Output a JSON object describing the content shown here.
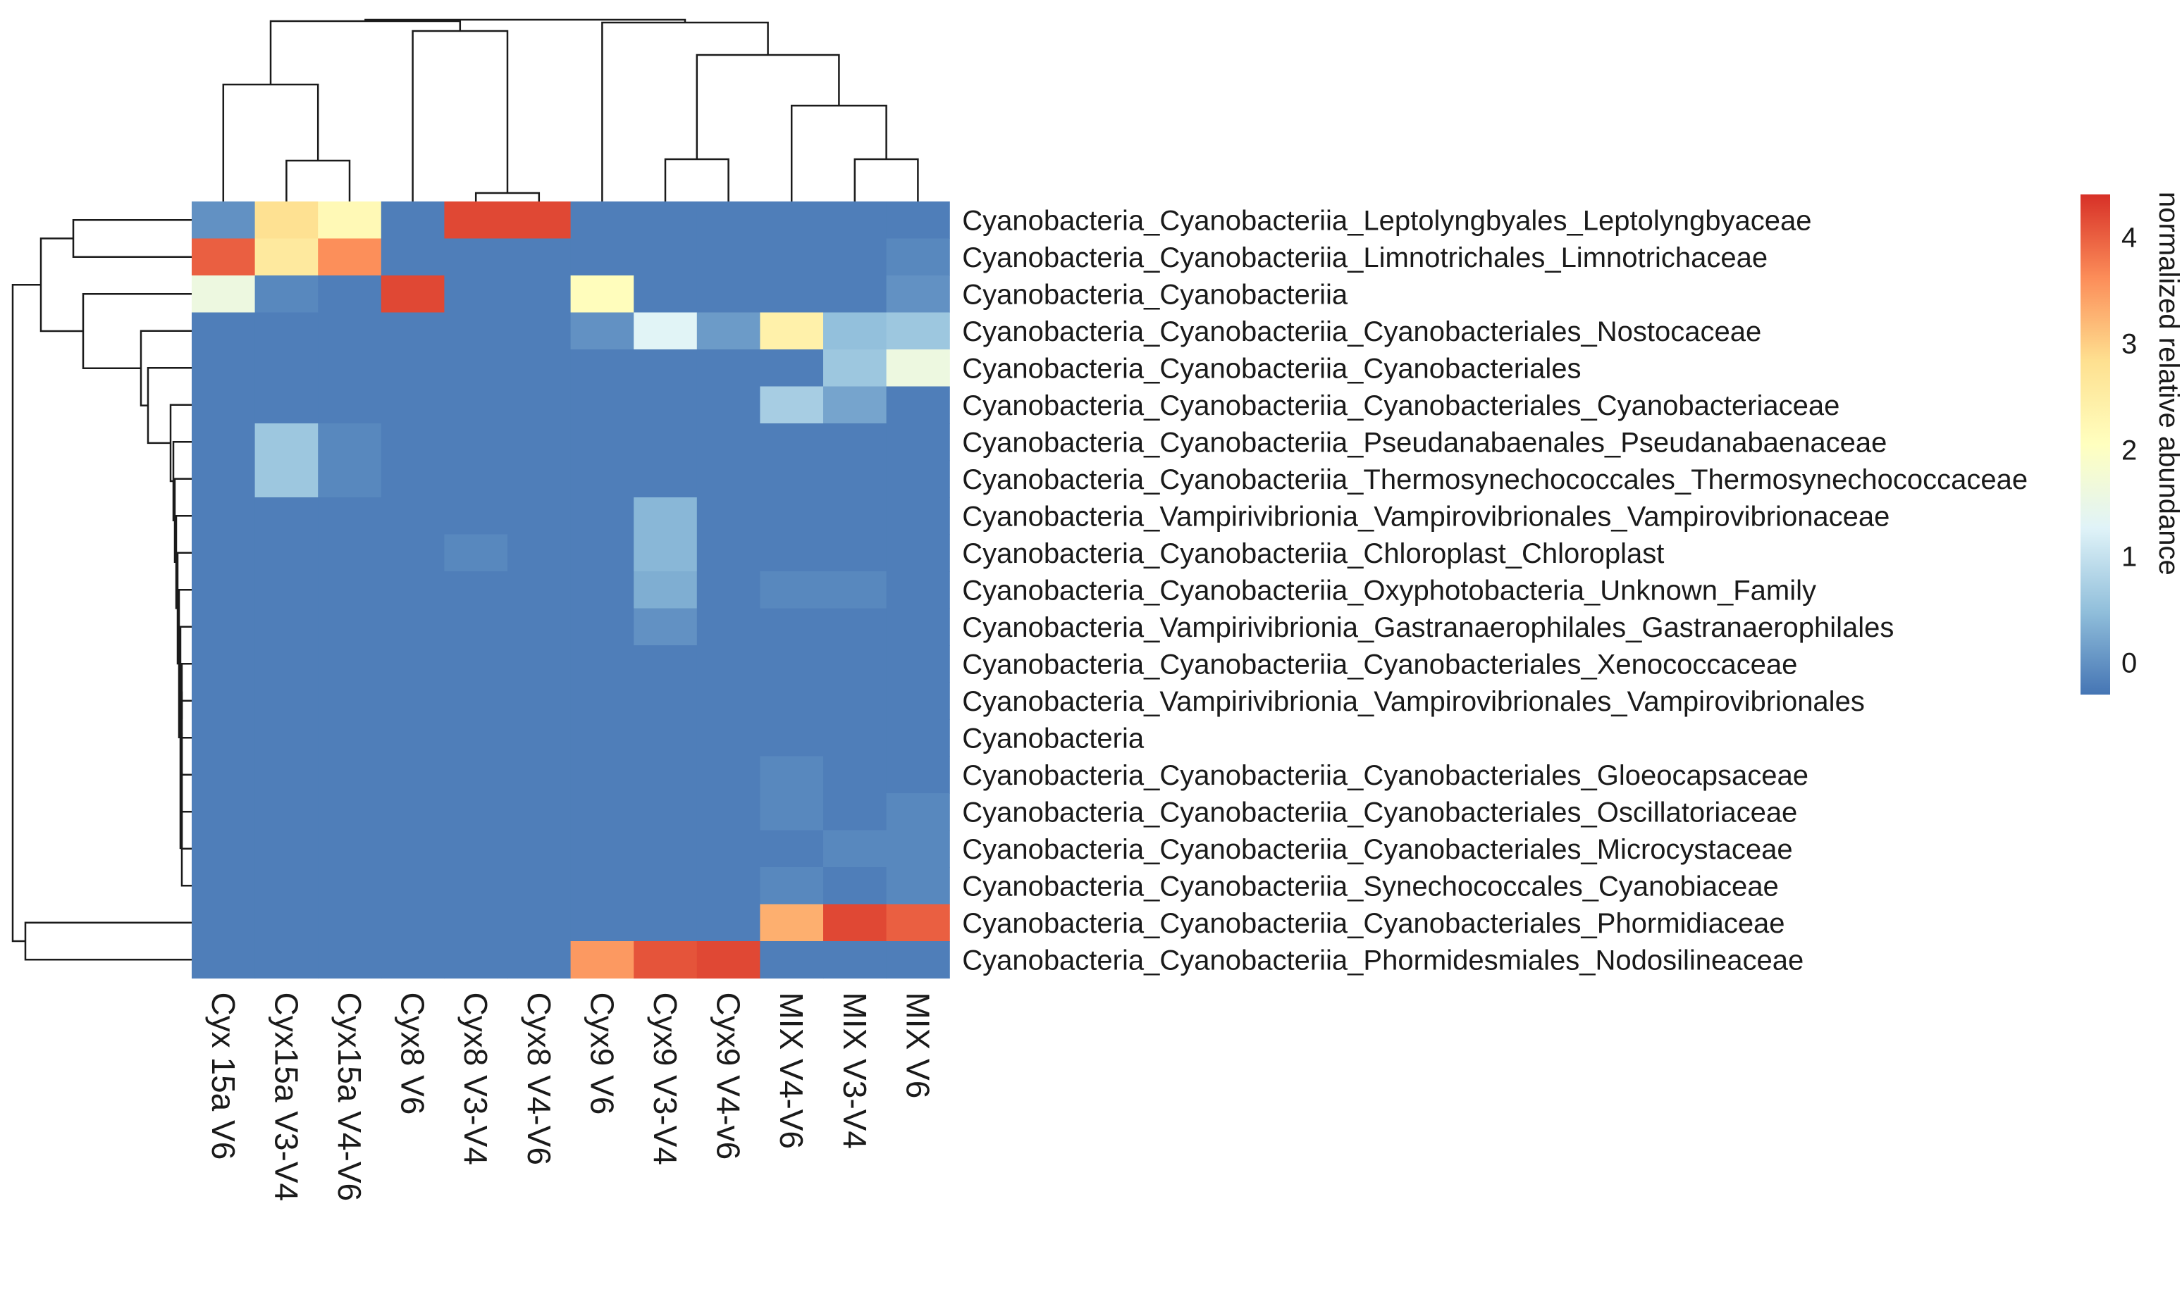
{
  "chart_data": {
    "type": "heatmap",
    "columns": [
      "Cyx 15a V6",
      "Cyx15a V3-V4",
      "Cyx15a V4-V6",
      "Cyx8 V6",
      "Cyx8 V3-V4",
      "Cyx8 V4-V6",
      "Cyx9 V6",
      "Cyx9 V3-V4",
      "Cyx9 V4-v6",
      "MIX V4-V6",
      "MIX V3-V4",
      "MIX V6"
    ],
    "rows": [
      "Cyanobacteria_Cyanobacteriia_Leptolyngbyales_Leptolyngbyaceae",
      "Cyanobacteria_Cyanobacteriia_Limnotrichales_Limnotrichaceae",
      "Cyanobacteria_Cyanobacteriia",
      "Cyanobacteria_Cyanobacteriia_Cyanobacteriales_Nostocaceae",
      "Cyanobacteria_Cyanobacteriia_Cyanobacteriales",
      "Cyanobacteria_Cyanobacteriia_Cyanobacteriales_Cyanobacteriaceae",
      "Cyanobacteria_Cyanobacteriia_Pseudanabaenales_Pseudanabaenaceae",
      "Cyanobacteria_Cyanobacteriia_Thermosynechococcales_Thermosynechococcaceae",
      "Cyanobacteria_Vampirivibrionia_Vampirovibrionales_Vampirovibrionaceae",
      "Cyanobacteria_Cyanobacteriia_Chloroplast_Chloroplast",
      "Cyanobacteria_Cyanobacteriia_Oxyphotobacteria_Unknown_Family",
      "Cyanobacteria_Vampirivibrionia_Gastranaerophilales_Gastranaerophilales",
      "Cyanobacteria_Cyanobacteriia_Cyanobacteriales_Xenococcaceae",
      "Cyanobacteria_Vampirivibrionia_Vampirovibrionales_Vampirovibrionales",
      "Cyanobacteria",
      "Cyanobacteria_Cyanobacteriia_Cyanobacteriales_Gloeocapsaceae",
      "Cyanobacteria_Cyanobacteriia_Cyanobacteriales_Oscillatoriaceae",
      "Cyanobacteria_Cyanobacteriia_Cyanobacteriales_Microcystaceae",
      "Cyanobacteria_Cyanobacteriia_Synechococcales_Cyanobiaceae",
      "Cyanobacteria_Cyanobacteriia_Cyanobacteriales_Phormidiaceae",
      "Cyanobacteria_Cyanobacteriia_Phormidesmiales_Nodosilineaceae"
    ],
    "values": [
      [
        0.0,
        2.8,
        2.2,
        -0.2,
        4.2,
        4.2,
        -0.2,
        -0.2,
        -0.2,
        -0.2,
        -0.2,
        -0.2
      ],
      [
        4.0,
        2.6,
        3.6,
        -0.2,
        -0.2,
        -0.2,
        -0.2,
        -0.2,
        -0.2,
        -0.2,
        -0.2,
        -0.1
      ],
      [
        1.6,
        -0.1,
        -0.2,
        4.2,
        -0.2,
        -0.2,
        2.1,
        -0.2,
        -0.2,
        -0.2,
        -0.2,
        0.0
      ],
      [
        -0.2,
        -0.2,
        -0.2,
        -0.2,
        -0.2,
        -0.2,
        0.0,
        1.3,
        0.1,
        2.4,
        0.5,
        0.6
      ],
      [
        -0.2,
        -0.2,
        -0.2,
        -0.2,
        -0.2,
        -0.2,
        -0.2,
        -0.2,
        -0.2,
        -0.2,
        0.6,
        1.6
      ],
      [
        -0.2,
        -0.2,
        -0.2,
        -0.2,
        -0.2,
        -0.2,
        -0.2,
        -0.2,
        -0.2,
        0.7,
        0.2,
        -0.2
      ],
      [
        -0.2,
        0.6,
        -0.1,
        -0.2,
        -0.2,
        -0.2,
        -0.2,
        -0.2,
        -0.2,
        -0.2,
        -0.2,
        -0.2
      ],
      [
        -0.2,
        0.6,
        -0.1,
        -0.2,
        -0.2,
        -0.2,
        -0.2,
        -0.2,
        -0.2,
        -0.2,
        -0.2,
        -0.2
      ],
      [
        -0.2,
        -0.2,
        -0.2,
        -0.2,
        -0.2,
        -0.2,
        -0.2,
        0.4,
        -0.2,
        -0.2,
        -0.2,
        -0.2
      ],
      [
        -0.2,
        -0.2,
        -0.2,
        -0.2,
        -0.1,
        -0.2,
        -0.2,
        0.4,
        -0.2,
        -0.2,
        -0.2,
        -0.2
      ],
      [
        -0.2,
        -0.2,
        -0.2,
        -0.2,
        -0.2,
        -0.2,
        -0.2,
        0.3,
        -0.2,
        -0.1,
        -0.1,
        -0.2
      ],
      [
        -0.2,
        -0.2,
        -0.2,
        -0.2,
        -0.2,
        -0.2,
        -0.2,
        0.0,
        -0.2,
        -0.2,
        -0.2,
        -0.2
      ],
      [
        -0.2,
        -0.2,
        -0.2,
        -0.2,
        -0.2,
        -0.2,
        -0.2,
        -0.2,
        -0.2,
        -0.2,
        -0.2,
        -0.2
      ],
      [
        -0.2,
        -0.2,
        -0.2,
        -0.2,
        -0.2,
        -0.2,
        -0.2,
        -0.2,
        -0.2,
        -0.2,
        -0.2,
        -0.2
      ],
      [
        -0.2,
        -0.2,
        -0.2,
        -0.2,
        -0.2,
        -0.2,
        -0.2,
        -0.2,
        -0.2,
        -0.2,
        -0.2,
        -0.2
      ],
      [
        -0.2,
        -0.2,
        -0.2,
        -0.2,
        -0.2,
        -0.2,
        -0.2,
        -0.2,
        -0.2,
        -0.1,
        -0.2,
        -0.2
      ],
      [
        -0.2,
        -0.2,
        -0.2,
        -0.2,
        -0.2,
        -0.2,
        -0.2,
        -0.2,
        -0.2,
        -0.1,
        -0.2,
        -0.1
      ],
      [
        -0.2,
        -0.2,
        -0.2,
        -0.2,
        -0.2,
        -0.2,
        -0.2,
        -0.2,
        -0.2,
        -0.2,
        -0.1,
        -0.1
      ],
      [
        -0.2,
        -0.2,
        -0.2,
        -0.2,
        -0.2,
        -0.2,
        -0.2,
        -0.2,
        -0.2,
        -0.1,
        -0.2,
        -0.1
      ],
      [
        -0.2,
        -0.2,
        -0.2,
        -0.2,
        -0.2,
        -0.2,
        -0.2,
        -0.2,
        -0.2,
        3.3,
        4.2,
        4.0
      ],
      [
        -0.2,
        -0.2,
        -0.2,
        -0.2,
        -0.2,
        -0.2,
        3.5,
        4.1,
        4.2,
        -0.2,
        -0.2,
        -0.2
      ]
    ],
    "colorbar": {
      "title": "normalized relative abundance",
      "ticks": [
        0,
        1,
        2,
        3,
        4
      ],
      "range": [
        -0.3,
        4.4
      ],
      "colors": [
        "#4575b4",
        "#91bfdb",
        "#e0f3f8",
        "#ffffbf",
        "#fee090",
        "#fc8d59",
        "#d73027"
      ]
    },
    "dendrograms": {
      "rows": true,
      "columns": true
    }
  }
}
